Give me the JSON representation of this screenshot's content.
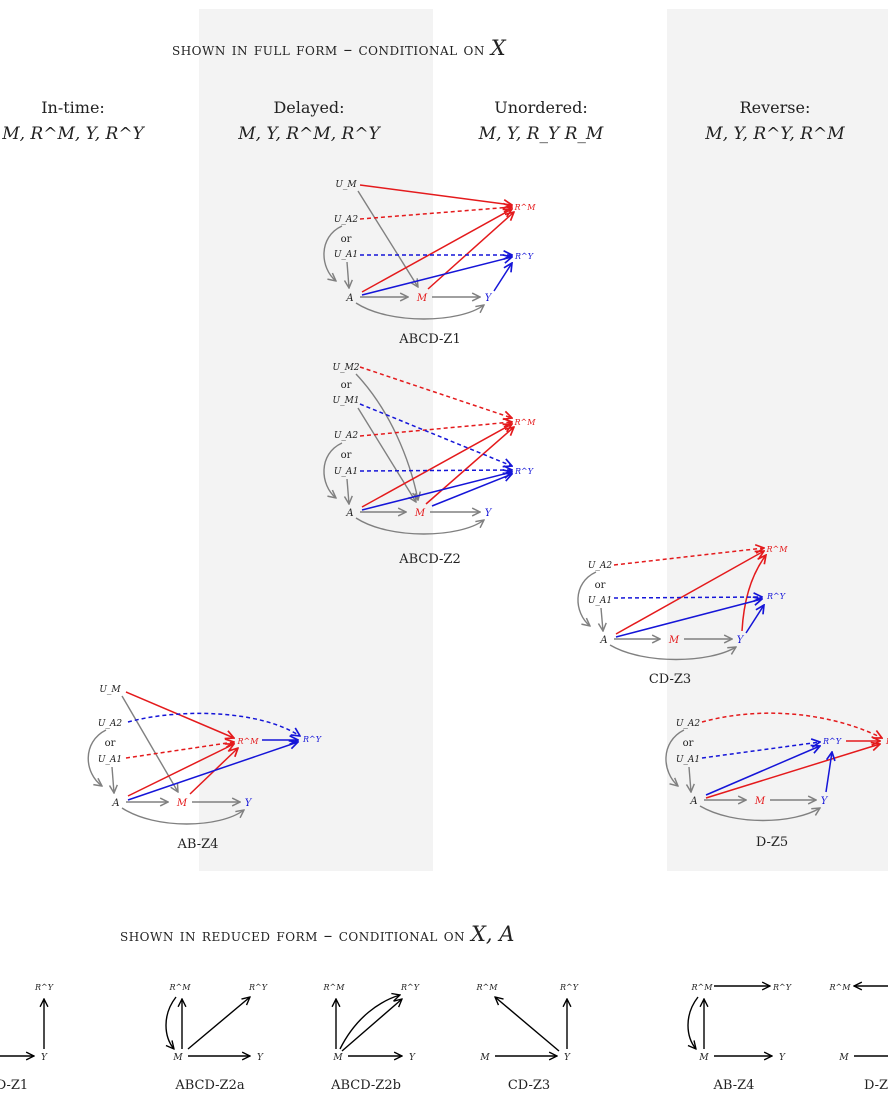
{
  "full_form_title": {
    "prefix": "shown in full form – conditional on ",
    "var": "X"
  },
  "reduced_form_title": {
    "prefix": "shown in reduced form – conditional on ",
    "var": "X, A"
  },
  "columns": [
    {
      "name": "In-time:",
      "order": "M, R^M, Y, R^Y"
    },
    {
      "name": "Delayed:",
      "order": "M, Y, R^M, R^Y"
    },
    {
      "name": "Unordered:",
      "order": "M, Y, R_Y R_M"
    },
    {
      "name": "Reverse:",
      "order": "M, Y, R^Y, R^M"
    }
  ],
  "colors": {
    "gray": "#808080",
    "red": "#e41a1c",
    "blue": "#1515d8",
    "band": "#f3f3f3",
    "black": "#000000"
  },
  "nodes": {
    "UM": "U_M",
    "UA2": "U_A2",
    "UA1": "U_A1",
    "UM2": "U_M2",
    "UM1": "U_M1",
    "or": "or",
    "A": "A",
    "M": "M",
    "Y": "Y",
    "RM": "R^M",
    "RY": "R^Y"
  },
  "full_panels": [
    "ABCD-Z1",
    "ABCD-Z2",
    "CD-Z3",
    "AB-Z4",
    "D-Z5"
  ],
  "reduced_panels": [
    "D-Z1",
    "ABCD-Z2a",
    "ABCD-Z2b",
    "CD-Z3",
    "AB-Z4",
    "D-Z"
  ]
}
